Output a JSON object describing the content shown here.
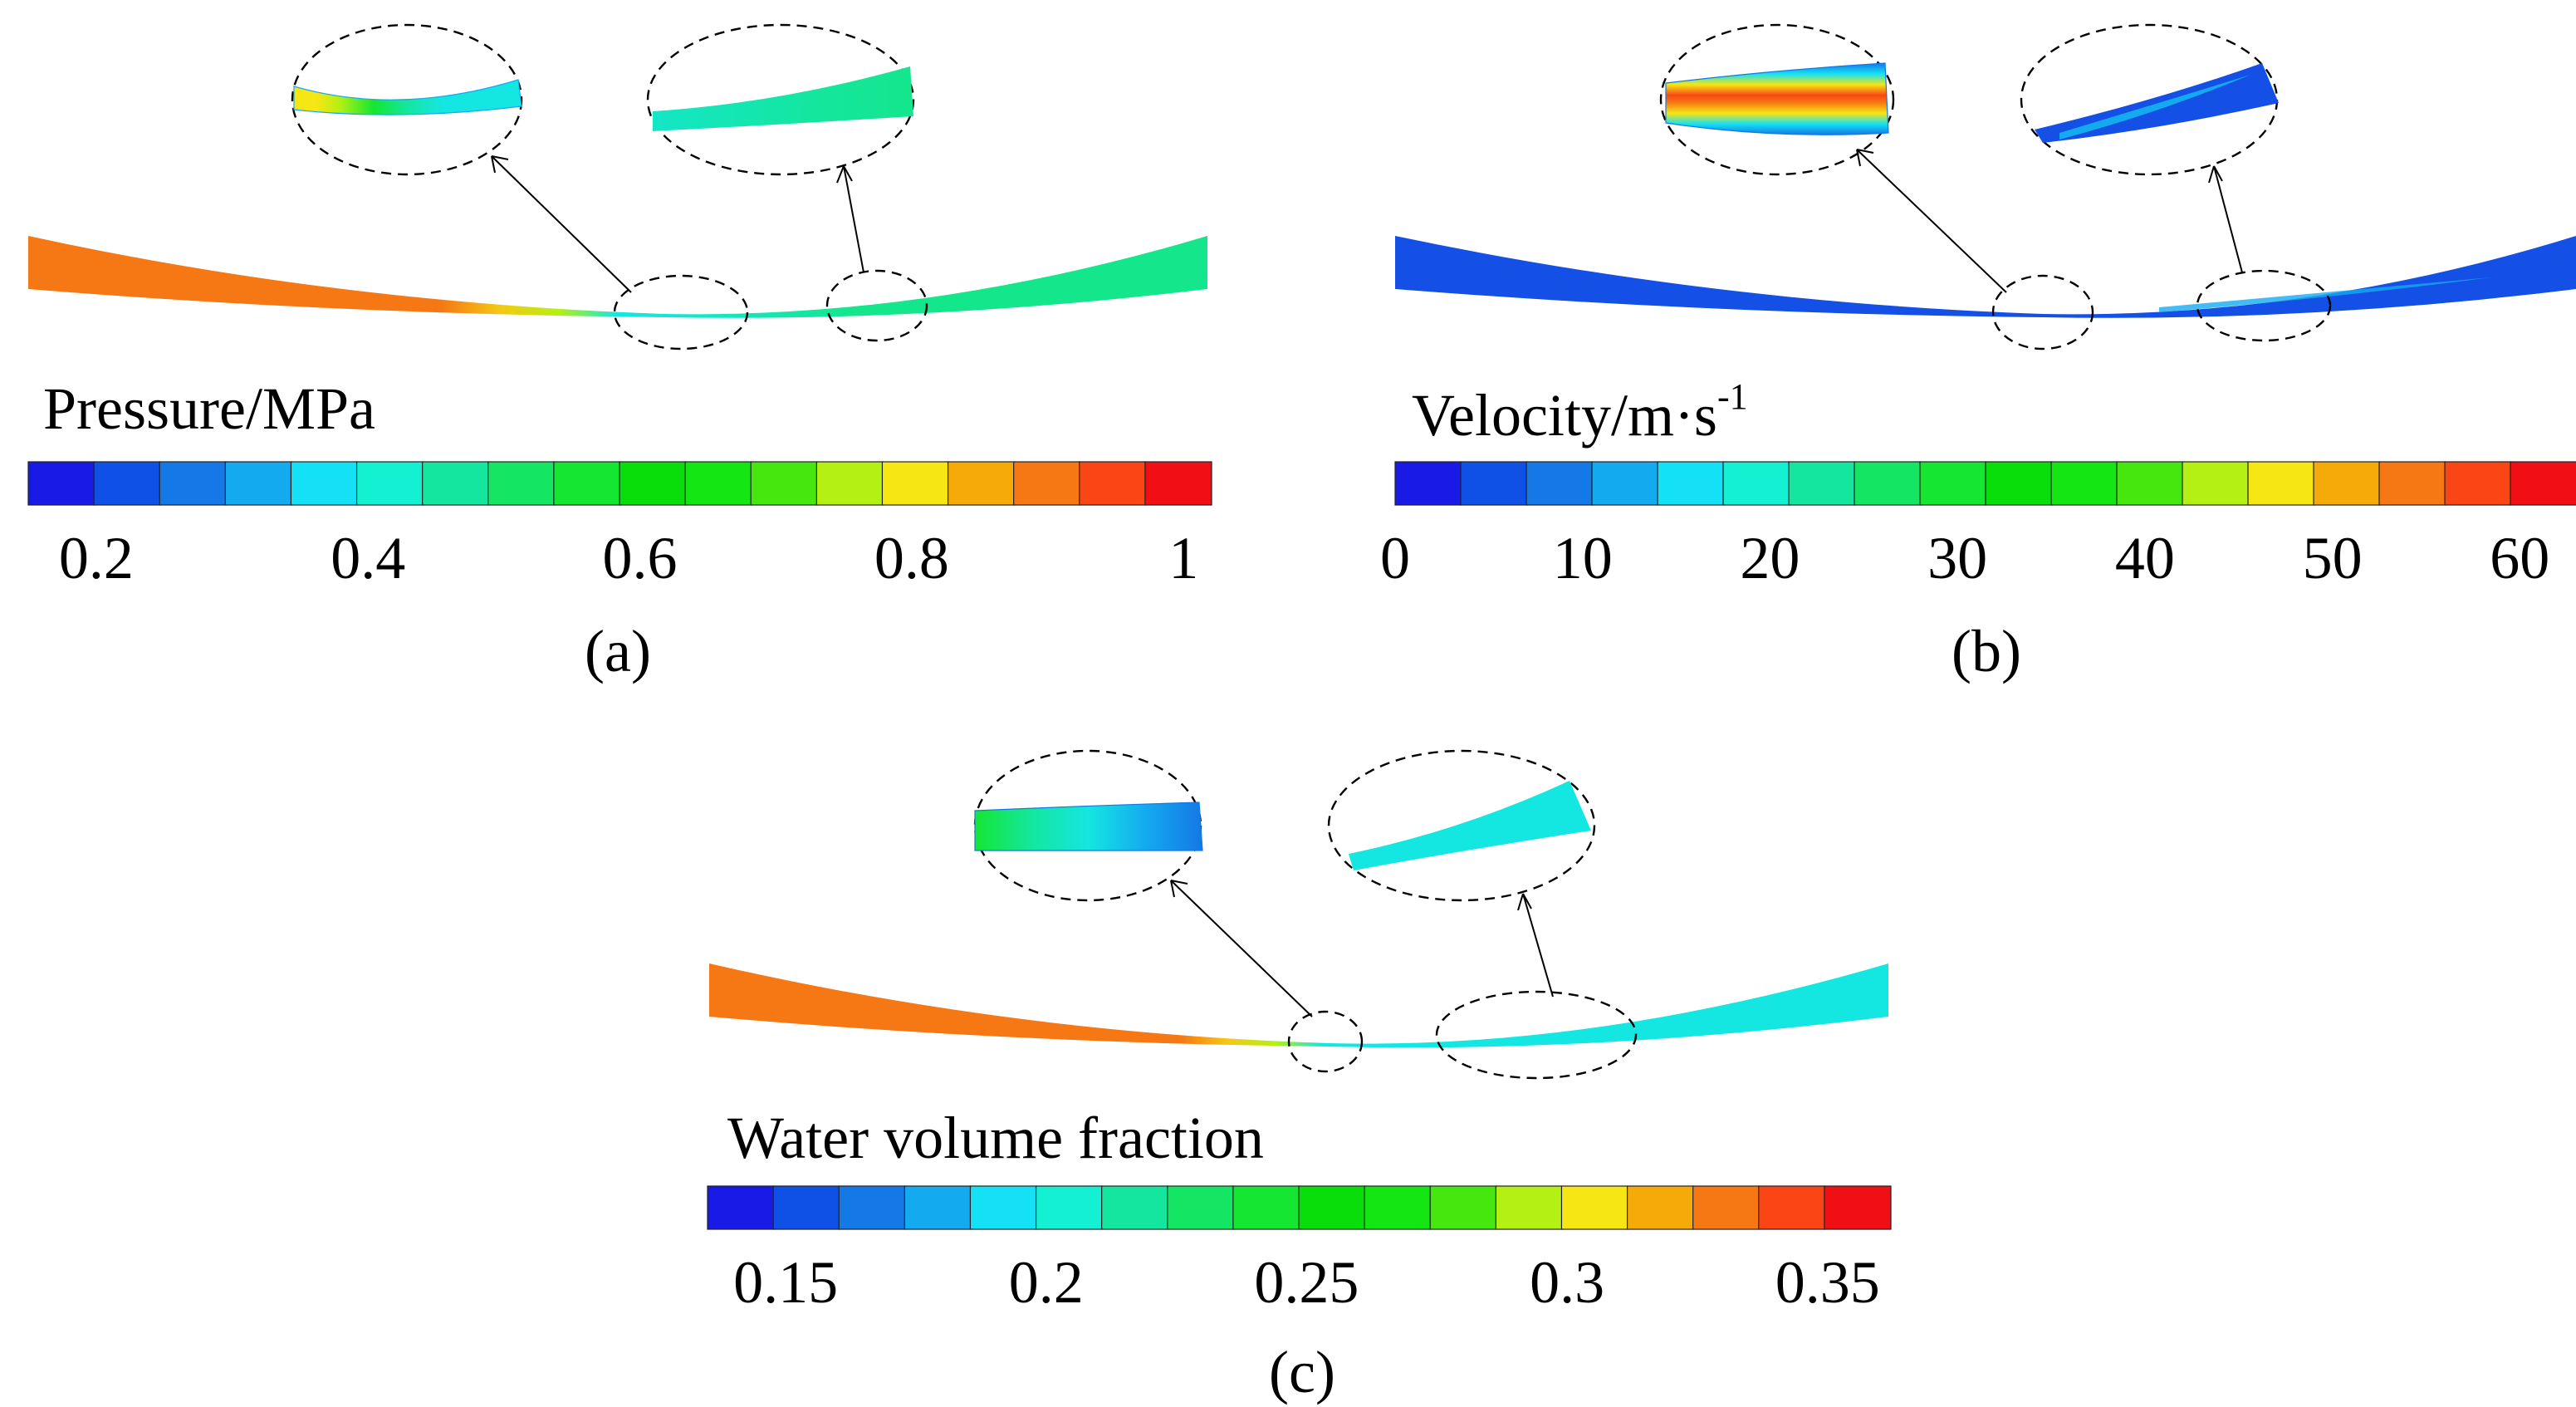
{
  "panels": [
    {
      "id": "a",
      "caption": "(a)",
      "legend": {
        "title": "Pressure/MPa",
        "ticks": [
          "0.2",
          "0.4",
          "0.6",
          "0.8",
          "1"
        ],
        "range": [
          0.15,
          1.02
        ]
      }
    },
    {
      "id": "b",
      "caption": "(b)",
      "legend": {
        "title_main": "Velocity/m·s",
        "title_sup": "-1",
        "ticks": [
          "0",
          "10",
          "20",
          "30",
          "40",
          "50",
          "60"
        ],
        "range": [
          0,
          63
        ]
      }
    },
    {
      "id": "c",
      "caption": "(c)",
      "legend": {
        "title": "Water volume fraction",
        "ticks": [
          "0.15",
          "0.2",
          "0.25",
          "0.3",
          "0.35"
        ],
        "range": [
          0.135,
          0.362
        ]
      }
    }
  ],
  "colormap": [
    "#1a1ae6",
    "#0f50e6",
    "#1478e6",
    "#14aaf0",
    "#14e1f5",
    "#14f0d2",
    "#14e6a0",
    "#14e664",
    "#14e632",
    "#0ade0a",
    "#14e614",
    "#46e60f",
    "#b4f014",
    "#f5e614",
    "#f5aa0a",
    "#f57814",
    "#fa4614",
    "#f00f14"
  ],
  "colors": {
    "orange": "#f57814",
    "green": "#14e68c",
    "cyan": "#14e6e1",
    "blue": "#1450e6"
  }
}
